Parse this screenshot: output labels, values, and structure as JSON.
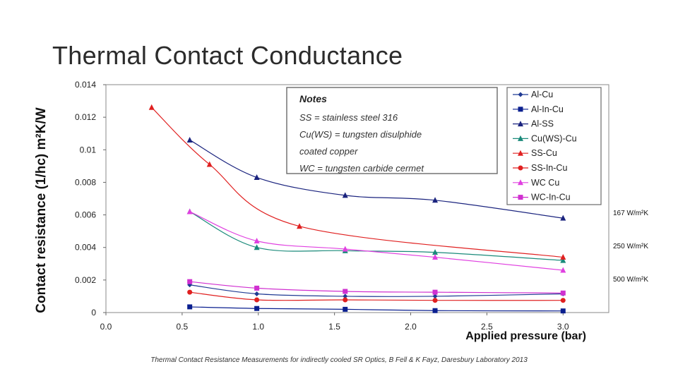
{
  "slide": {
    "title": "Thermal Contact Conductance",
    "caption": "Thermal Contact Resistance Measurements for indirectly cooled SR Optics, B Fell & K Fayz, Daresbury Laboratory 2013",
    "callouts": [
      "167 W/m²K",
      "250 W/m²K",
      "500 W/m²K"
    ]
  },
  "chart_data": {
    "type": "line",
    "title": "",
    "xlabel": "Applied pressure (bar)",
    "ylabel": "Contact resistance (1/hc)   m²K/W",
    "xlim": [
      0,
      3.3
    ],
    "ylim": [
      0,
      0.014
    ],
    "x_ticks": [
      "0.0",
      "0.5",
      "1.0",
      "1.5",
      "2.0",
      "2.5",
      "3.0"
    ],
    "y_ticks": [
      "0",
      "0.002",
      "0.004",
      "0.006",
      "0.008",
      "0.01",
      "0.012",
      "0.014"
    ],
    "notes": {
      "heading": "Notes",
      "lines": [
        "SS = stainless steel 316",
        "Cu(WS) = tungsten disulphide",
        "coated copper",
        "WC = tungsten carbide cermet"
      ]
    },
    "legend_position": "top-right",
    "series": [
      {
        "name": "Al-Cu",
        "color": "#1f3a93",
        "marker": "diamond",
        "x": [
          0.55,
          0.99,
          1.57,
          2.16,
          3.0
        ],
        "y": [
          0.0017,
          0.00115,
          0.001,
          0.001,
          0.00115
        ]
      },
      {
        "name": "Al-In-Cu",
        "color": "#0a1f8f",
        "marker": "square",
        "x": [
          0.55,
          0.99,
          1.57,
          2.16,
          3.0
        ],
        "y": [
          0.00035,
          0.00025,
          0.0002,
          0.00012,
          0.0001
        ]
      },
      {
        "name": "Al-SS",
        "color": "#1a237e",
        "marker": "triangle",
        "x": [
          0.55,
          0.99,
          1.57,
          2.16,
          3.0
        ],
        "y": [
          0.0106,
          0.0083,
          0.0072,
          0.0069,
          0.0058
        ]
      },
      {
        "name": "Cu(WS)-Cu",
        "color": "#1a8a7a",
        "marker": "triangle",
        "x": [
          0.55,
          0.99,
          1.57,
          2.16,
          3.0
        ],
        "y": [
          0.0062,
          0.004,
          0.0038,
          0.0037,
          0.0032
        ]
      },
      {
        "name": "SS-Cu",
        "color": "#e02020",
        "marker": "triangle",
        "x": [
          0.3,
          0.68,
          1.27,
          3.0
        ],
        "y": [
          0.0126,
          0.0091,
          0.0053,
          0.0034
        ]
      },
      {
        "name": "SS-In-Cu",
        "color": "#e02020",
        "marker": "circle",
        "x": [
          0.55,
          0.99,
          1.57,
          2.16,
          3.0
        ],
        "y": [
          0.00125,
          0.00078,
          0.00078,
          0.00075,
          0.00075
        ]
      },
      {
        "name": "WC Cu",
        "color": "#e040e0",
        "marker": "triangle",
        "x": [
          0.55,
          0.99,
          1.57,
          2.16,
          3.0
        ],
        "y": [
          0.0062,
          0.0044,
          0.0039,
          0.0034,
          0.0026
        ]
      },
      {
        "name": "WC-In-Cu",
        "color": "#d030d0",
        "marker": "square",
        "x": [
          0.55,
          0.99,
          1.57,
          2.16,
          3.0
        ],
        "y": [
          0.0019,
          0.0015,
          0.0013,
          0.00125,
          0.0012
        ]
      }
    ]
  }
}
